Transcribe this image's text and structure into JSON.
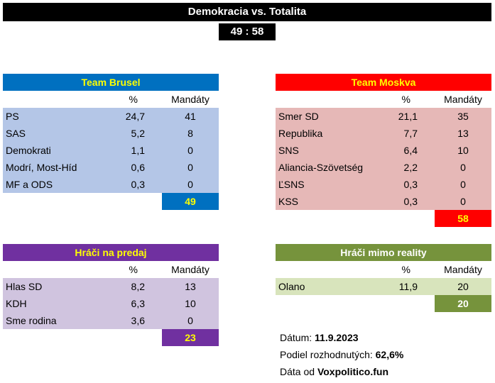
{
  "title": "Demokracia vs. Totalita",
  "score": "49 : 58",
  "col_pct": "%",
  "col_seats": "Mandáty",
  "brusel": {
    "name": "Team Brusel",
    "rows": [
      {
        "name": "PS",
        "pct": "24,7",
        "seats": "41"
      },
      {
        "name": "SAS",
        "pct": "5,2",
        "seats": "8"
      },
      {
        "name": "Demokrati",
        "pct": "1,1",
        "seats": "0"
      },
      {
        "name": "Modrí, Most-Híd",
        "pct": "0,6",
        "seats": "0"
      },
      {
        "name": "MF a ODS",
        "pct": "0,3",
        "seats": "0"
      }
    ],
    "total": "49"
  },
  "moskva": {
    "name": "Team Moskva",
    "rows": [
      {
        "name": "Smer SD",
        "pct": "21,1",
        "seats": "35"
      },
      {
        "name": "Republika",
        "pct": "7,7",
        "seats": "13"
      },
      {
        "name": "SNS",
        "pct": "6,4",
        "seats": "10"
      },
      {
        "name": "Aliancia-Szövetség",
        "pct": "2,2",
        "seats": "0"
      },
      {
        "name": "ĽSNS",
        "pct": "0,3",
        "seats": "0"
      },
      {
        "name": "KSS",
        "pct": "0,3",
        "seats": "0"
      }
    ],
    "total": "58"
  },
  "predaj": {
    "name": "Hráči na predaj",
    "rows": [
      {
        "name": "Hlas SD",
        "pct": "8,2",
        "seats": "13"
      },
      {
        "name": "KDH",
        "pct": "6,3",
        "seats": "10"
      },
      {
        "name": "Sme rodina",
        "pct": "3,6",
        "seats": "0"
      }
    ],
    "total": "23"
  },
  "mimo": {
    "name": "Hráči mimo reality",
    "rows": [
      {
        "name": "Olano",
        "pct": "11,9",
        "seats": "20"
      }
    ],
    "total": "20"
  },
  "info": {
    "date_label": "Dátum: ",
    "date_value": "11.9.2023",
    "share_label": "Podiel rozhodnutých: ",
    "share_value": "62,6%",
    "source_label": "Dáta od ",
    "source_value": "Voxpolitico.fun"
  },
  "colors": {
    "brusel_header": "#0070C0",
    "brusel_row": "#B4C6E7",
    "brusel_text": "#FFFF00",
    "moskva_header": "#FF0000",
    "moskva_row": "#E6B8B7",
    "moskva_text": "#FFFF00",
    "predaj_header": "#7030A0",
    "predaj_row": "#D0C4DF",
    "mimo_header": "#76933C",
    "mimo_row": "#D8E4BC"
  }
}
